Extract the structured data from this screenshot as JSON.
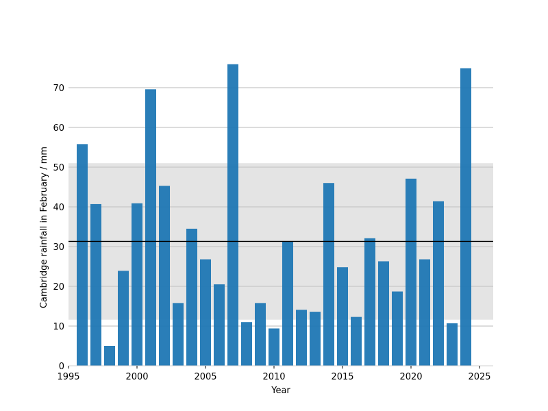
{
  "chart_data": {
    "type": "bar",
    "title": "",
    "xlabel": "Year",
    "ylabel": "Cambridge rainfall in February / mm",
    "x": [
      1996,
      1997,
      1998,
      1999,
      2000,
      2001,
      2002,
      2003,
      2004,
      2005,
      2006,
      2007,
      2008,
      2009,
      2010,
      2011,
      2012,
      2013,
      2014,
      2015,
      2016,
      2017,
      2018,
      2019,
      2020,
      2021,
      2022,
      2023,
      2024
    ],
    "values": [
      55.8,
      40.7,
      5.0,
      23.9,
      40.9,
      69.6,
      45.3,
      15.8,
      34.5,
      26.8,
      20.5,
      75.9,
      11.0,
      15.8,
      9.4,
      31.3,
      14.1,
      13.6,
      46.0,
      24.8,
      12.3,
      32.1,
      26.3,
      18.7,
      47.1,
      26.8,
      41.4,
      10.7,
      74.9
    ],
    "xlim": [
      1995,
      2026
    ],
    "ylim": [
      0,
      80
    ],
    "x_ticks": [
      1995,
      2000,
      2005,
      2010,
      2015,
      2020,
      2025
    ],
    "y_ticks": [
      0,
      10,
      20,
      30,
      40,
      50,
      60,
      70
    ],
    "mean_line": 31.3,
    "band": [
      11.6,
      51.0
    ],
    "grid": "y",
    "colors": {
      "bar": "#1f77b4",
      "band": "#e4e4e4",
      "grid": "#c8c8c8",
      "mean_line": "#000000"
    }
  }
}
